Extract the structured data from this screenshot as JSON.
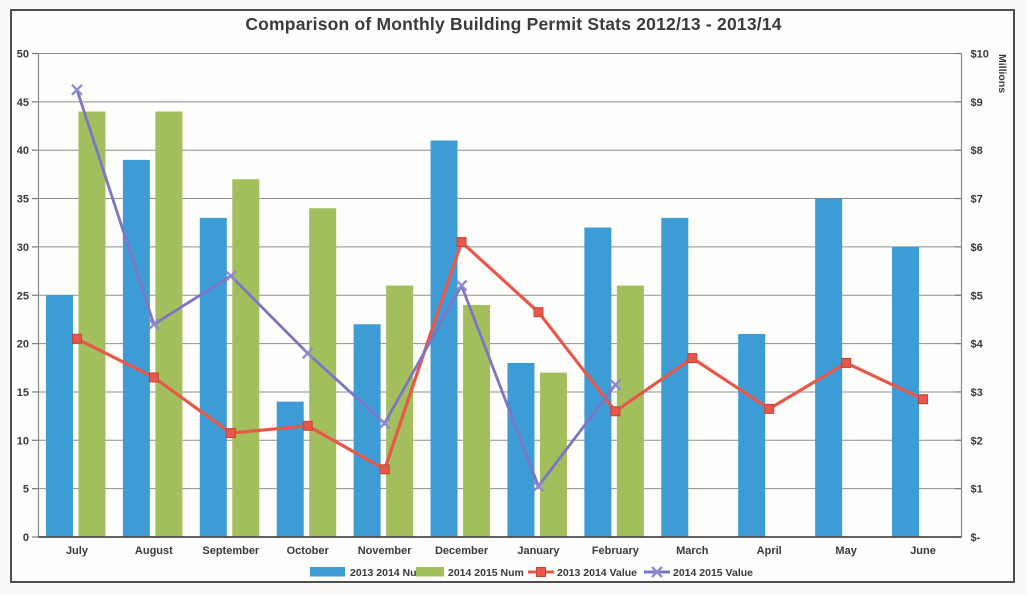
{
  "page": {
    "title": "Comparison of Monthly Building Permit Stats 2012/13 - 2013/14"
  },
  "chart_data": {
    "type": "combo bar + line (dual axis)",
    "categories": [
      "July",
      "August",
      "September",
      "October",
      "November",
      "December",
      "January",
      "February",
      "March",
      "April",
      "May",
      "June"
    ],
    "series": [
      {
        "name": "2013 2014 Number",
        "type": "bar",
        "axis": "left",
        "marker": "none",
        "color": "#3D9BD5",
        "values": [
          25,
          39,
          33,
          14,
          22,
          41,
          18,
          32,
          33,
          21,
          35,
          30
        ]
      },
      {
        "name": "2014 2015 Num",
        "type": "bar",
        "axis": "left",
        "marker": "none",
        "color": "#A3BF5D",
        "values": [
          44,
          44,
          37,
          34,
          26,
          24,
          17,
          26,
          null,
          null,
          null,
          null
        ]
      },
      {
        "name": "2013 2014 Value",
        "type": "line",
        "axis": "right",
        "marker": "square",
        "color": "#E8584A",
        "units": "$ millions",
        "values": [
          4.1,
          3.3,
          2.15,
          2.3,
          1.4,
          6.1,
          4.65,
          2.6,
          3.7,
          2.65,
          3.6,
          2.85
        ]
      },
      {
        "name": "2014 2015 Value",
        "type": "line",
        "axis": "right",
        "marker": "x",
        "color": "#7B76C3",
        "units": "$ millions",
        "values": [
          9.25,
          4.4,
          5.4,
          3.8,
          2.35,
          5.2,
          1.05,
          3.15,
          null,
          null,
          null,
          null
        ]
      }
    ],
    "left_axis": {
      "min": 0,
      "max": 50,
      "step": 5,
      "ticks": [
        "0",
        "5",
        "10",
        "15",
        "20",
        "25",
        "30",
        "35",
        "40",
        "45",
        "50"
      ]
    },
    "right_axis": {
      "min": 0,
      "max": 10,
      "step": 1,
      "units_label": "Millions",
      "ticks": [
        "$-",
        "$1",
        "$2",
        "$3",
        "$4",
        "$5",
        "$6",
        "$7",
        "$8",
        "$9",
        "$10"
      ]
    },
    "grid": true,
    "legend_position": "bottom"
  }
}
